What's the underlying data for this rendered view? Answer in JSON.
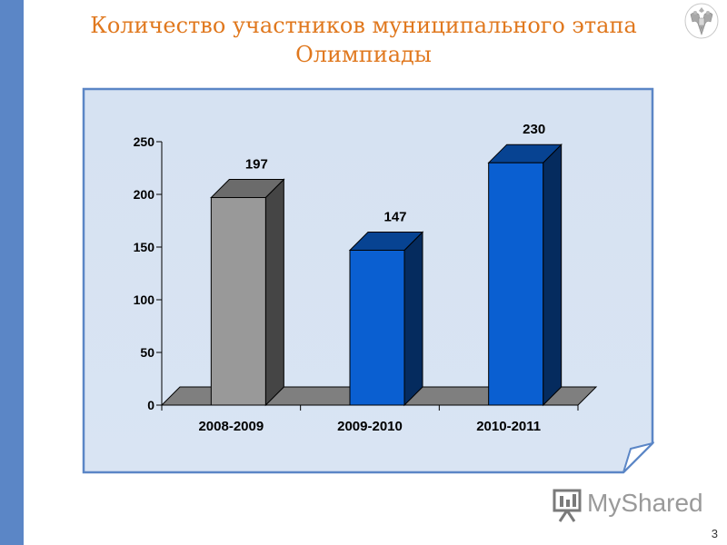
{
  "slide": {
    "title_line1": "Количество участников  муниципального этапа",
    "title_line2": "Олимпиады",
    "page_number": "3",
    "watermark_text": "MyShared",
    "emblem_icon": "russian-coat-of-arms-icon",
    "watermark_icon": "presentation-board-icon",
    "accent_color": "#e0781e",
    "side_bar_color": "#5b86c6"
  },
  "chart_data": {
    "type": "bar",
    "title": "",
    "xlabel": "",
    "ylabel": "",
    "categories": [
      "2008-2009",
      "2009-2010",
      "2010-2011"
    ],
    "values": [
      197,
      147,
      230
    ],
    "data_labels": [
      "197",
      "147",
      "230"
    ],
    "ylim": [
      0,
      250
    ],
    "yticks": [
      "0",
      "50",
      "100",
      "150",
      "200",
      "250"
    ],
    "colors": [
      "#999999",
      "#0a5fd1",
      "#0a5fd1"
    ],
    "grid": false,
    "legend": "none",
    "style": "3d"
  }
}
